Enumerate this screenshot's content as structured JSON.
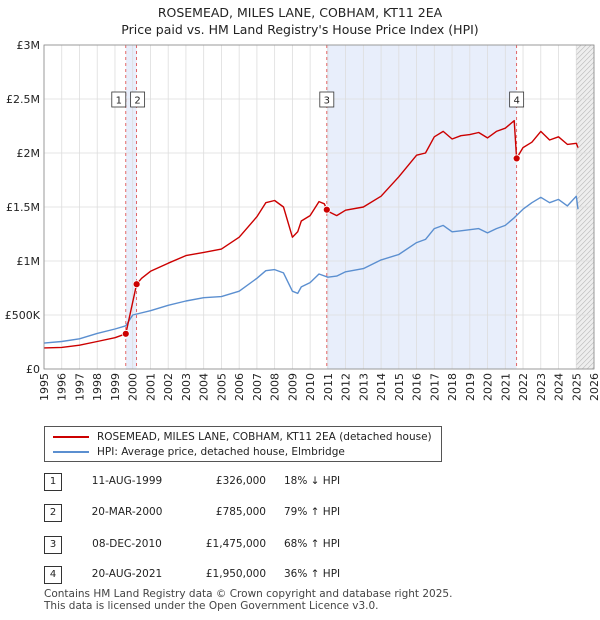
{
  "title_line1": "ROSEMEAD, MILES LANE, COBHAM, KT11 2EA",
  "title_line2": "Price paid vs. HM Land Registry's House Price Index (HPI)",
  "colors": {
    "property": "#cc0000",
    "hpi": "#5b8fd0",
    "shade": "#e8eefb",
    "grid": "#dddddd"
  },
  "legend": {
    "property_label": "ROSEMEAD, MILES LANE, COBHAM, KT11 2EA (detached house)",
    "hpi_label": "HPI: Average price, detached house, Elmbridge"
  },
  "sales": [
    {
      "num": "1",
      "date": "11-AUG-1999",
      "price": "£326,000",
      "hpi_change": "18% ↓ HPI"
    },
    {
      "num": "2",
      "date": "20-MAR-2000",
      "price": "£785,000",
      "hpi_change": "79% ↑ HPI"
    },
    {
      "num": "3",
      "date": "08-DEC-2010",
      "price": "£1,475,000",
      "hpi_change": "68% ↑ HPI"
    },
    {
      "num": "4",
      "date": "20-AUG-2021",
      "price": "£1,950,000",
      "hpi_change": "36% ↑ HPI"
    }
  ],
  "footer_line1": "Contains HM Land Registry data © Crown copyright and database right 2025.",
  "footer_line2": "This data is licensed under the Open Government Licence v3.0.",
  "chart_data": {
    "type": "line",
    "title": "ROSEMEAD, MILES LANE, COBHAM, KT11 2EA — Price paid vs. HM Land Registry's House Price Index (HPI)",
    "xlim": [
      1995,
      2026
    ],
    "ylim": [
      0,
      3000000
    ],
    "x_ticks": [
      1995,
      1996,
      1997,
      1998,
      1999,
      2000,
      2001,
      2002,
      2003,
      2004,
      2005,
      2006,
      2007,
      2008,
      2009,
      2010,
      2011,
      2012,
      2013,
      2014,
      2015,
      2016,
      2017,
      2018,
      2019,
      2020,
      2021,
      2022,
      2023,
      2024,
      2025,
      2026
    ],
    "y_ticks": [
      {
        "value": 0,
        "label": "£0"
      },
      {
        "value": 500000,
        "label": "£500K"
      },
      {
        "value": 1000000,
        "label": "£1M"
      },
      {
        "value": 1500000,
        "label": "£1.5M"
      },
      {
        "value": 2000000,
        "label": "£2M"
      },
      {
        "value": 2500000,
        "label": "£2.5M"
      },
      {
        "value": 3000000,
        "label": "£3M"
      }
    ],
    "shaded_ranges": [
      [
        1999.61,
        2000.22
      ],
      [
        2010.94,
        2021.64
      ],
      [
        2025.0,
        2026.0
      ]
    ],
    "sale_markers": [
      {
        "label": "1",
        "x": 1999.61,
        "y": 326000
      },
      {
        "label": "2",
        "x": 2000.22,
        "y": 785000
      },
      {
        "label": "3",
        "x": 2010.94,
        "y": 1475000
      },
      {
        "label": "4",
        "x": 2021.64,
        "y": 1950000
      }
    ],
    "series": [
      {
        "name": "ROSEMEAD, MILES LANE, COBHAM, KT11 2EA (detached house)",
        "x": [
          1995,
          1996,
          1997,
          1998,
          1999,
          1999.61,
          2000.22,
          2000.5,
          2001,
          2002,
          2003,
          2004,
          2005,
          2006,
          2007,
          2007.5,
          2008,
          2008.5,
          2009,
          2009.3,
          2009.5,
          2010,
          2010.5,
          2010.8,
          2010.94,
          2011,
          2011.5,
          2012,
          2013,
          2014,
          2015,
          2016,
          2016.5,
          2017,
          2017.5,
          2018,
          2018.5,
          2019,
          2019.5,
          2020,
          2020.5,
          2021,
          2021.5,
          2021.64,
          2022,
          2022.5,
          2023,
          2023.5,
          2024,
          2024.5,
          2025,
          2025.1
        ],
        "values": [
          195000,
          200000,
          220000,
          255000,
          290000,
          326000,
          785000,
          840000,
          905000,
          980000,
          1050000,
          1080000,
          1110000,
          1220000,
          1410000,
          1540000,
          1560000,
          1500000,
          1220000,
          1270000,
          1370000,
          1420000,
          1550000,
          1530000,
          1475000,
          1460000,
          1420000,
          1470000,
          1500000,
          1600000,
          1780000,
          1980000,
          2000000,
          2150000,
          2200000,
          2130000,
          2160000,
          2170000,
          2190000,
          2140000,
          2200000,
          2230000,
          2300000,
          1950000,
          2050000,
          2100000,
          2200000,
          2120000,
          2150000,
          2080000,
          2090000,
          2050000
        ]
      },
      {
        "name": "HPI: Average price, detached house, Elmbridge",
        "x": [
          1995,
          1996,
          1997,
          1998,
          1999,
          1999.61,
          2000,
          2001,
          2002,
          2003,
          2004,
          2005,
          2006,
          2007,
          2007.5,
          2008,
          2008.5,
          2009,
          2009.3,
          2009.5,
          2010,
          2010.5,
          2011,
          2011.5,
          2012,
          2013,
          2014,
          2015,
          2016,
          2016.5,
          2017,
          2017.5,
          2018,
          2018.5,
          2019,
          2019.5,
          2020,
          2020.5,
          2021,
          2021.5,
          2022,
          2022.5,
          2023,
          2023.5,
          2024,
          2024.5,
          2025,
          2025.1
        ],
        "values": [
          240000,
          255000,
          280000,
          330000,
          370000,
          400000,
          500000,
          540000,
          590000,
          630000,
          660000,
          670000,
          720000,
          840000,
          910000,
          920000,
          890000,
          720000,
          700000,
          760000,
          800000,
          880000,
          850000,
          860000,
          900000,
          930000,
          1010000,
          1060000,
          1170000,
          1200000,
          1300000,
          1330000,
          1270000,
          1280000,
          1290000,
          1300000,
          1260000,
          1300000,
          1330000,
          1400000,
          1480000,
          1540000,
          1590000,
          1540000,
          1570000,
          1510000,
          1600000,
          1480000
        ]
      }
    ]
  }
}
